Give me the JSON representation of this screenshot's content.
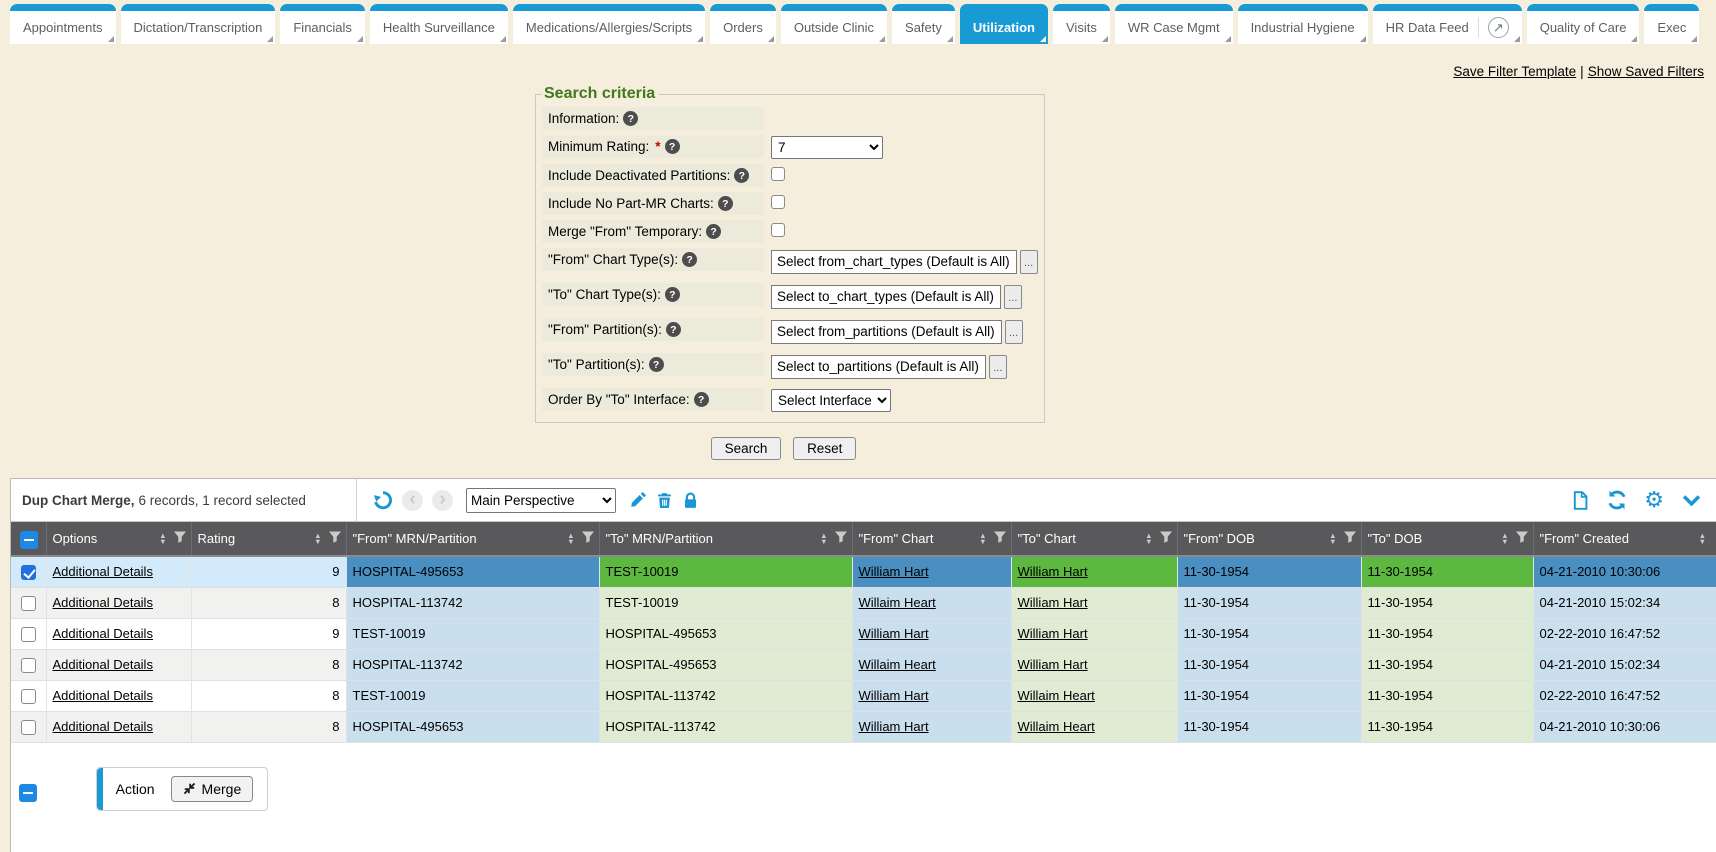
{
  "colors": {
    "accent": "#189ad5",
    "icon_blue": "#1996d3",
    "page_bg": "#f6eedc",
    "label_bg": "#eceada",
    "legend_green": "#40791d",
    "header_bg": "#59595b",
    "selected_from": "#4a8fc2",
    "selected_to": "#5cb83e",
    "selected_neutral": "#d2eafa",
    "from_cell": "#c9dfee",
    "to_cell": "#dfebd3",
    "alt_row": "#f1f1f0",
    "check_blue": "#2170dd",
    "minus_blue": "#1e88e5"
  },
  "icons": {
    "help": "?",
    "sort_asc": "▲",
    "sort_desc": "▼",
    "prev": "‹",
    "next": "›",
    "external": "↗",
    "gear": "⚙",
    "ellipsis": "..."
  },
  "tabs": [
    {
      "label": "Appointments"
    },
    {
      "label": "Dictation/Transcription"
    },
    {
      "label": "Financials"
    },
    {
      "label": "Health Surveillance"
    },
    {
      "label": "Medications/Allergies/Scripts"
    },
    {
      "label": "Orders"
    },
    {
      "label": "Outside Clinic"
    },
    {
      "label": "Safety"
    },
    {
      "label": "Utilization",
      "active": true
    },
    {
      "label": "Visits"
    },
    {
      "label": "WR Case Mgmt"
    },
    {
      "label": "Industrial Hygiene"
    },
    {
      "label": "HR Data Feed",
      "external_icon": true
    },
    {
      "label": "Quality of Care"
    },
    {
      "label": "Exec"
    }
  ],
  "filter_links": {
    "save": "Save Filter Template",
    "separator": "|",
    "show": "Show Saved Filters"
  },
  "search": {
    "legend": "Search criteria",
    "rows": [
      {
        "key": "information",
        "label": "Information:",
        "help": true,
        "control": {
          "type": "none"
        }
      },
      {
        "key": "minimum_rating",
        "label": "Minimum Rating:",
        "required": true,
        "help": true,
        "control": {
          "type": "select",
          "value": "7"
        }
      },
      {
        "key": "include_deactivated_partitions",
        "label": "Include Deactivated Partitions:",
        "help": true,
        "control": {
          "type": "checkbox",
          "checked": false
        }
      },
      {
        "key": "include_no_part_mr_charts",
        "label": "Include No Part-MR Charts:",
        "help": true,
        "control": {
          "type": "checkbox",
          "checked": false
        }
      },
      {
        "key": "merge_from_temporary",
        "label": "Merge \"From\" Temporary:",
        "help": true,
        "control": {
          "type": "checkbox",
          "checked": false
        }
      },
      {
        "key": "from_chart_types",
        "label": "\"From\" Chart Type(s):",
        "help": true,
        "control": {
          "type": "picker",
          "value": "Select from_chart_types (Default is All)",
          "button": "..."
        }
      },
      {
        "key": "to_chart_types",
        "label": "\"To\" Chart Type(s):",
        "help": true,
        "control": {
          "type": "picker",
          "value": "Select to_chart_types (Default is All)",
          "button": "..."
        }
      },
      {
        "key": "from_partitions",
        "label": "\"From\" Partition(s):",
        "help": true,
        "control": {
          "type": "picker",
          "value": "Select from_partitions (Default is All)",
          "button": "..."
        }
      },
      {
        "key": "to_partitions",
        "label": "\"To\" Partition(s):",
        "help": true,
        "control": {
          "type": "picker",
          "value": "Select to_partitions (Default is All)",
          "button": "..."
        }
      },
      {
        "key": "order_by_to_interface",
        "label": "Order By \"To\" Interface:",
        "help": true,
        "control": {
          "type": "select",
          "value": "Select Interface"
        }
      }
    ],
    "buttons": {
      "search": "Search",
      "reset": "Reset"
    }
  },
  "grid": {
    "title": "Dup Chart Merge,",
    "summary": "6 records, 1 record selected",
    "perspective": "Main Perspective",
    "columns": [
      {
        "key": "options",
        "label": "Options",
        "group": "neutral",
        "link": true
      },
      {
        "key": "rating",
        "label": "Rating",
        "group": "neutral"
      },
      {
        "key": "from_mrn",
        "label": "\"From\" MRN/Partition",
        "group": "from"
      },
      {
        "key": "to_mrn",
        "label": "\"To\" MRN/Partition",
        "group": "to"
      },
      {
        "key": "from_chart",
        "label": "\"From\" Chart",
        "group": "from",
        "link": true
      },
      {
        "key": "to_chart",
        "label": "\"To\" Chart",
        "group": "to",
        "link": true
      },
      {
        "key": "from_dob",
        "label": "\"From\" DOB",
        "group": "from"
      },
      {
        "key": "to_dob",
        "label": "\"To\" DOB",
        "group": "to"
      },
      {
        "key": "from_created",
        "label": "\"From\" Created",
        "group": "from",
        "no_filter": true
      }
    ],
    "rows": [
      {
        "selected": true,
        "options": "Additional Details",
        "rating": "9",
        "from_mrn": "HOSPITAL-495653",
        "to_mrn": "TEST-10019",
        "from_chart": "William Hart",
        "to_chart": "William Hart",
        "from_dob": "11-30-1954",
        "to_dob": "11-30-1954",
        "from_created": "04-21-2010 10:30:06"
      },
      {
        "selected": false,
        "options": "Additional Details",
        "rating": "8",
        "from_mrn": "HOSPITAL-113742",
        "to_mrn": "TEST-10019",
        "from_chart": "Willaim Heart",
        "to_chart": "William Hart",
        "from_dob": "11-30-1954",
        "to_dob": "11-30-1954",
        "from_created": "04-21-2010 15:02:34"
      },
      {
        "selected": false,
        "options": "Additional Details",
        "rating": "9",
        "from_mrn": "TEST-10019",
        "to_mrn": "HOSPITAL-495653",
        "from_chart": "William Hart",
        "to_chart": "William Hart",
        "from_dob": "11-30-1954",
        "to_dob": "11-30-1954",
        "from_created": "02-22-2010 16:47:52"
      },
      {
        "selected": false,
        "options": "Additional Details",
        "rating": "8",
        "from_mrn": "HOSPITAL-113742",
        "to_mrn": "HOSPITAL-495653",
        "from_chart": "Willaim Heart",
        "to_chart": "William Hart",
        "from_dob": "11-30-1954",
        "to_dob": "11-30-1954",
        "from_created": "04-21-2010 15:02:34"
      },
      {
        "selected": false,
        "options": "Additional Details",
        "rating": "8",
        "from_mrn": "TEST-10019",
        "to_mrn": "HOSPITAL-113742",
        "from_chart": "William Hart",
        "to_chart": "Willaim Heart",
        "from_dob": "11-30-1954",
        "to_dob": "11-30-1954",
        "from_created": "02-22-2010 16:47:52"
      },
      {
        "selected": false,
        "options": "Additional Details",
        "rating": "8",
        "from_mrn": "HOSPITAL-495653",
        "to_mrn": "HOSPITAL-113742",
        "from_chart": "William Hart",
        "to_chart": "Willaim Heart",
        "from_dob": "11-30-1954",
        "to_dob": "11-30-1954",
        "from_created": "04-21-2010 10:30:06"
      }
    ]
  },
  "footer": {
    "action_label": "Action",
    "merge_label": "Merge"
  }
}
